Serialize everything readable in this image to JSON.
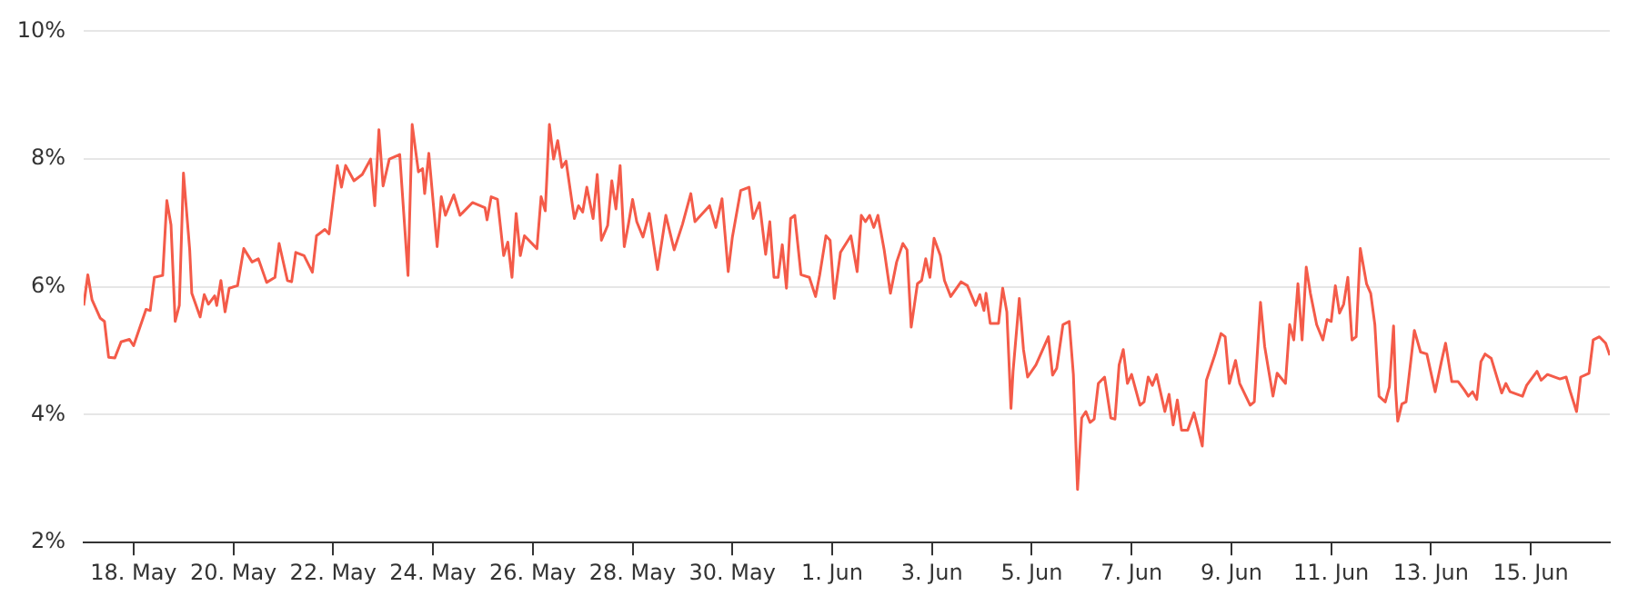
{
  "chart_data": {
    "type": "line",
    "grid": "y",
    "marker": "none",
    "line_style": "solid",
    "legend": false,
    "xlim": [
      "--05-17T00:00",
      "--06-16T14:00"
    ],
    "xticks": [
      {
        "value": "--05-18",
        "label": "18. May"
      },
      {
        "value": "--05-20",
        "label": "20. May"
      },
      {
        "value": "--05-22",
        "label": "22. May"
      },
      {
        "value": "--05-24",
        "label": "24. May"
      },
      {
        "value": "--05-26",
        "label": "26. May"
      },
      {
        "value": "--05-28",
        "label": "28. May"
      },
      {
        "value": "--05-30",
        "label": "30. May"
      },
      {
        "value": "--06-01",
        "label": "1. Jun"
      },
      {
        "value": "--06-03",
        "label": "3. Jun"
      },
      {
        "value": "--06-05",
        "label": "5. Jun"
      },
      {
        "value": "--06-07",
        "label": "7. Jun"
      },
      {
        "value": "--06-09",
        "label": "9. Jun"
      },
      {
        "value": "--06-11",
        "label": "11. Jun"
      },
      {
        "value": "--06-13",
        "label": "13. Jun"
      },
      {
        "value": "--06-15",
        "label": "15. Jun"
      }
    ],
    "ylim": [
      2,
      10
    ],
    "yticks": [
      {
        "value": 2,
        "label": "2%"
      },
      {
        "value": 4,
        "label": "4%"
      },
      {
        "value": 6,
        "label": "6%"
      },
      {
        "value": 8,
        "label": "8%"
      },
      {
        "value": 10,
        "label": "10%"
      }
    ],
    "series": [
      {
        "color": "#f45b49",
        "x": [
          "--05-17T00:00",
          "--05-17T02:00",
          "--05-17T04:00",
          "--05-17T08:00",
          "--05-17T10:00",
          "--05-17T12:00",
          "--05-17T15:00",
          "--05-17T18:00",
          "--05-17T22:00",
          "--05-18T00:00",
          "--05-18T06:00",
          "--05-18T08:00",
          "--05-18T10:00",
          "--05-18T14:00",
          "--05-18T16:00",
          "--05-18T18:00",
          "--05-18T20:00",
          "--05-18T22:00",
          "--05-19T00:00",
          "--05-19T03:00",
          "--05-19T04:00",
          "--05-19T08:00",
          "--05-19T10:00",
          "--05-19T12:00",
          "--05-19T15:00",
          "--05-19T16:00",
          "--05-19T18:00",
          "--05-19T20:00",
          "--05-19T22:00",
          "--05-20T02:00",
          "--05-20T05:00",
          "--05-20T09:00",
          "--05-20T12:00",
          "--05-20T16:00",
          "--05-20T20:00",
          "--05-20T22:00",
          "--05-21T02:00",
          "--05-21T04:00",
          "--05-21T06:00",
          "--05-21T10:00",
          "--05-21T14:00",
          "--05-21T16:00",
          "--05-21T20:00",
          "--05-21T22:00",
          "--05-22T02:00",
          "--05-22T04:00",
          "--05-22T06:00",
          "--05-22T10:00",
          "--05-22T14:00",
          "--05-22T18:00",
          "--05-22T20:00",
          "--05-22T22:00",
          "--05-23T00:00",
          "--05-23T03:00",
          "--05-23T08:00",
          "--05-23T12:00",
          "--05-23T14:00",
          "--05-23T17:00",
          "--05-23T19:00",
          "--05-23T20:00",
          "--05-23T22:00",
          "--05-24T02:00",
          "--05-24T04:00",
          "--05-24T06:00",
          "--05-24T10:00",
          "--05-24T13:00",
          "--05-24T19:00",
          "--05-25T01:00",
          "--05-25T02:00",
          "--05-25T04:00",
          "--05-25T07:00",
          "--05-25T10:00",
          "--05-25T12:00",
          "--05-25T14:00",
          "--05-25T16:00",
          "--05-25T18:00",
          "--05-25T20:00",
          "--05-26T02:00",
          "--05-26T04:00",
          "--05-26T06:00",
          "--05-26T08:00",
          "--05-26T10:00",
          "--05-26T12:00",
          "--05-26T14:00",
          "--05-26T16:00",
          "--05-26T20:00",
          "--05-26T22:00",
          "--05-27T00:00",
          "--05-27T02:00",
          "--05-27T05:00",
          "--05-27T07:00",
          "--05-27T09:00",
          "--05-27T12:00",
          "--05-27T14:00",
          "--05-27T16:00",
          "--05-27T18:00",
          "--05-27T20:00",
          "--05-27T22:00",
          "--05-28T00:00",
          "--05-28T02:00",
          "--05-28T05:00",
          "--05-28T08:00",
          "--05-28T10:00",
          "--05-28T12:00",
          "--05-28T16:00",
          "--05-28T20:00",
          "--05-29T00:00",
          "--05-29T04:00",
          "--05-29T06:00",
          "--05-29T13:00",
          "--05-29T16:00",
          "--05-29T19:00",
          "--05-29T22:00",
          "--05-30T00:00",
          "--05-30T04:00",
          "--05-30T08:00",
          "--05-30T10:00",
          "--05-30T13:00",
          "--05-30T16:00",
          "--05-30T18:00",
          "--05-30T20:00",
          "--05-30T22:00",
          "--05-31T00:00",
          "--05-31T02:00",
          "--05-31T04:00",
          "--05-31T06:00",
          "--05-31T09:00",
          "--05-31T13:00",
          "--05-31T16:00",
          "--05-31T18:00",
          "--05-31T21:00",
          "--05-31T23:00",
          "--06-01T01:00",
          "--06-01T04:00",
          "--06-01T09:00",
          "--06-01T12:00",
          "--06-01T14:00",
          "--06-01T16:00",
          "--06-01T18:00",
          "--06-01T20:00",
          "--06-01T22:00",
          "--06-02T01:00",
          "--06-02T04:00",
          "--06-02T07:00",
          "--06-02T10:00",
          "--06-02T12:00",
          "--06-02T14:00",
          "--06-02T17:00",
          "--06-02T19:00",
          "--06-02T21:00",
          "--06-02T23:00",
          "--06-03T01:00",
          "--06-03T04:00",
          "--06-03T06:00",
          "--06-03T09:00",
          "--06-03T14:00",
          "--06-03T17:00",
          "--06-03T21:00",
          "--06-03T23:00",
          "--06-04T01:00",
          "--06-04T02:00",
          "--06-04T04:00",
          "--06-04T08:00",
          "--06-04T10:00",
          "--06-04T12:00",
          "--06-04T14:00",
          "--06-04T15:00",
          "--06-04T18:00",
          "--06-04T20:00",
          "--06-04T22:00",
          "--06-05T02:00",
          "--06-05T08:00",
          "--06-05T10:00",
          "--06-05T12:00",
          "--06-05T15:00",
          "--06-05T18:00",
          "--06-05T20:00",
          "--06-05T22:00",
          "--06-06T00:00",
          "--06-06T02:00",
          "--06-06T04:00",
          "--06-06T06:00",
          "--06-06T08:00",
          "--06-06T11:00",
          "--06-06T14:00",
          "--06-06T16:00",
          "--06-06T18:00",
          "--06-06T20:00",
          "--06-06T22:00",
          "--06-07T00:00",
          "--06-07T04:00",
          "--06-07T06:00",
          "--06-07T08:00",
          "--06-07T10:00",
          "--06-07T12:00",
          "--06-07T16:00",
          "--06-07T18:00",
          "--06-07T20:00",
          "--06-07T22:00",
          "--06-08T00:00",
          "--06-08T03:00",
          "--06-08T06:00",
          "--06-08T10:00",
          "--06-08T12:00",
          "--06-08T16:00",
          "--06-08T19:00",
          "--06-08T21:00",
          "--06-08T23:00",
          "--06-09T02:00",
          "--06-09T04:00",
          "--06-09T09:00",
          "--06-09T11:00",
          "--06-09T14:00",
          "--06-09T16:00",
          "--06-09T18:00",
          "--06-09T20:00",
          "--06-09T22:00",
          "--06-10T02:00",
          "--06-10T04:00",
          "--06-10T06:00",
          "--06-10T08:00",
          "--06-10T10:00",
          "--06-10T12:00",
          "--06-10T14:00",
          "--06-10T17:00",
          "--06-10T20:00",
          "--06-10T22:00",
          "--06-11T00:00",
          "--06-11T02:00",
          "--06-11T04:00",
          "--06-11T06:00",
          "--06-11T08:00",
          "--06-11T10:00",
          "--06-11T12:00",
          "--06-11T14:00",
          "--06-11T17:00",
          "--06-11T19:00",
          "--06-11T21:00",
          "--06-11T23:00",
          "--06-12T02:00",
          "--06-12T04:00",
          "--06-12T06:00",
          "--06-12T07:00",
          "--06-12T08:00",
          "--06-12T10:00",
          "--06-12T12:00",
          "--06-12T16:00",
          "--06-12T19:00",
          "--06-12T22:00",
          "--06-13T02:00",
          "--06-13T05:00",
          "--06-13T07:00",
          "--06-13T10:00",
          "--06-13T13:00",
          "--06-13T16:00",
          "--06-13T18:00",
          "--06-13T20:00",
          "--06-13T22:00",
          "--06-14T00:00",
          "--06-14T02:00",
          "--06-14T05:00",
          "--06-14T10:00",
          "--06-14T12:00",
          "--06-14T14:00",
          "--06-14T20:00",
          "--06-14T22:00",
          "--06-15T03:00",
          "--06-15T05:00",
          "--06-15T08:00",
          "--06-15T14:00",
          "--06-15T17:00",
          "--06-15T19:00",
          "--06-15T22:00",
          "--06-16T00:00",
          "--06-16T04:00",
          "--06-16T06:00",
          "--06-16T09:00",
          "--06-16T12:00",
          "--06-16T14:00"
        ],
        "values": [
          5.71,
          6.19,
          5.8,
          5.51,
          5.46,
          4.9,
          4.89,
          5.14,
          5.18,
          5.08,
          5.65,
          5.63,
          6.15,
          6.18,
          7.35,
          6.97,
          5.46,
          5.71,
          7.78,
          6.58,
          5.9,
          5.53,
          5.88,
          5.73,
          5.86,
          5.71,
          6.1,
          5.61,
          5.98,
          6.02,
          6.6,
          6.39,
          6.44,
          6.07,
          6.15,
          6.68,
          6.1,
          6.08,
          6.54,
          6.49,
          6.23,
          6.8,
          6.9,
          6.83,
          7.9,
          7.56,
          7.9,
          7.66,
          7.76,
          8.0,
          7.27,
          8.46,
          7.58,
          8.0,
          8.07,
          6.18,
          8.54,
          7.8,
          7.85,
          7.46,
          8.09,
          6.63,
          7.41,
          7.12,
          7.44,
          7.12,
          7.32,
          7.24,
          7.05,
          7.41,
          7.37,
          6.49,
          6.7,
          6.15,
          7.15,
          6.49,
          6.8,
          6.6,
          7.41,
          7.19,
          8.54,
          8.0,
          8.29,
          7.87,
          7.97,
          7.07,
          7.27,
          7.17,
          7.56,
          7.07,
          7.76,
          6.73,
          6.96,
          7.66,
          7.22,
          7.9,
          6.63,
          6.98,
          7.37,
          7.02,
          6.78,
          7.15,
          6.7,
          6.27,
          7.12,
          6.58,
          6.98,
          7.46,
          7.02,
          7.27,
          6.93,
          7.38,
          6.24,
          6.78,
          7.51,
          7.56,
          7.07,
          7.32,
          6.51,
          7.02,
          6.15,
          6.15,
          6.66,
          5.98,
          7.07,
          7.12,
          6.19,
          6.15,
          5.85,
          6.19,
          6.8,
          6.73,
          5.82,
          6.54,
          6.8,
          6.24,
          7.12,
          7.02,
          7.12,
          6.93,
          7.12,
          6.58,
          5.9,
          6.39,
          6.68,
          6.58,
          5.37,
          6.05,
          6.1,
          6.44,
          6.15,
          6.76,
          6.49,
          6.1,
          5.85,
          6.08,
          6.02,
          5.71,
          5.88,
          5.63,
          5.9,
          5.43,
          5.43,
          5.98,
          5.61,
          4.1,
          4.68,
          5.82,
          5.02,
          4.59,
          4.78,
          5.22,
          4.62,
          4.73,
          5.41,
          5.46,
          4.63,
          2.83,
          3.95,
          4.05,
          3.88,
          3.93,
          4.49,
          4.59,
          3.95,
          3.93,
          4.78,
          5.02,
          4.49,
          4.63,
          4.15,
          4.2,
          4.59,
          4.46,
          4.63,
          4.05,
          4.32,
          3.84,
          4.23,
          3.76,
          3.76,
          4.03,
          3.51,
          4.54,
          4.93,
          5.27,
          5.22,
          4.49,
          4.85,
          4.49,
          4.15,
          4.2,
          5.76,
          5.07,
          4.68,
          4.29,
          4.65,
          4.49,
          5.41,
          5.17,
          6.05,
          5.17,
          6.31,
          5.9,
          5.41,
          5.17,
          5.49,
          5.46,
          6.02,
          5.59,
          5.73,
          6.15,
          5.17,
          5.22,
          6.6,
          6.05,
          5.9,
          5.41,
          4.29,
          4.2,
          4.44,
          5.39,
          4.39,
          3.9,
          4.17,
          4.2,
          5.32,
          4.98,
          4.95,
          4.36,
          4.83,
          5.12,
          4.52,
          4.52,
          4.39,
          4.29,
          4.36,
          4.24,
          4.83,
          4.95,
          4.88,
          4.34,
          4.49,
          4.36,
          4.29,
          4.46,
          4.68,
          4.54,
          4.63,
          4.56,
          4.59,
          4.36,
          4.05,
          4.59,
          4.65,
          5.17,
          5.22,
          5.12,
          4.93
        ]
      }
    ]
  }
}
